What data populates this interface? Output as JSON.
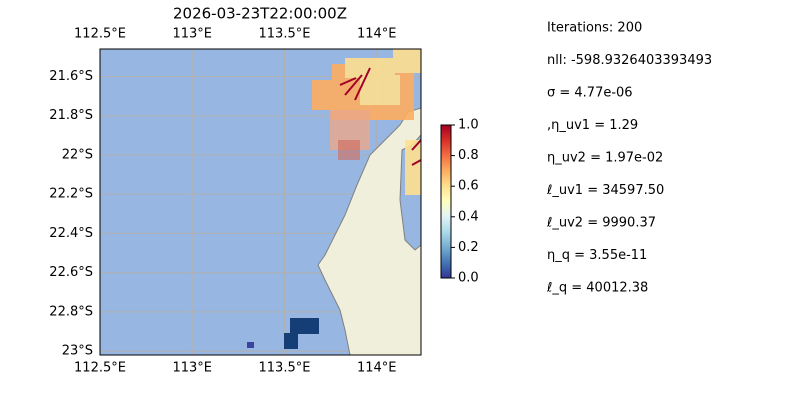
{
  "title": "2026-03-23T22:00:00Z",
  "map": {
    "xlim": [
      112.5,
      114.24
    ],
    "ylim": [
      -23.02,
      -21.46
    ],
    "xticks": [
      {
        "value": 112.5,
        "label": "112.5°E"
      },
      {
        "value": 113,
        "label": "113°E"
      },
      {
        "value": 113.5,
        "label": "113.5°E"
      },
      {
        "value": 114,
        "label": "114°E"
      }
    ],
    "yticks": [
      {
        "value": -21.6,
        "label": "21.6°S"
      },
      {
        "value": -21.8,
        "label": "21.8°S"
      },
      {
        "value": -22,
        "label": "22°S"
      },
      {
        "value": -22.2,
        "label": "22.2°S"
      },
      {
        "value": -22.4,
        "label": "22.4°S"
      },
      {
        "value": -22.6,
        "label": "22.6°S"
      },
      {
        "value": -22.8,
        "label": "22.8°S"
      },
      {
        "value": -23,
        "label": "23°S"
      }
    ],
    "grid": true
  },
  "colorbar": {
    "lim": [
      0,
      1
    ],
    "ticks": [
      {
        "value": 0,
        "label": "0.0"
      },
      {
        "value": 0.2,
        "label": "0.2"
      },
      {
        "value": 0.4,
        "label": "0.4"
      },
      {
        "value": 0.6,
        "label": "0.6"
      },
      {
        "value": 0.8,
        "label": "0.8"
      },
      {
        "value": 1,
        "label": "1.0"
      }
    ]
  },
  "stats": [
    "Iterations: 200",
    "nll: -598.9326403393493",
    "σ = 4.77e-06",
    ",η_uv1 = 1.29",
    "η_uv2 = 1.97e-02",
    "ℓ_uv1 = 34597.50",
    "ℓ_uv2 = 9990.37",
    "η_q = 3.55e-11",
    "ℓ_q = 40012.38"
  ]
}
